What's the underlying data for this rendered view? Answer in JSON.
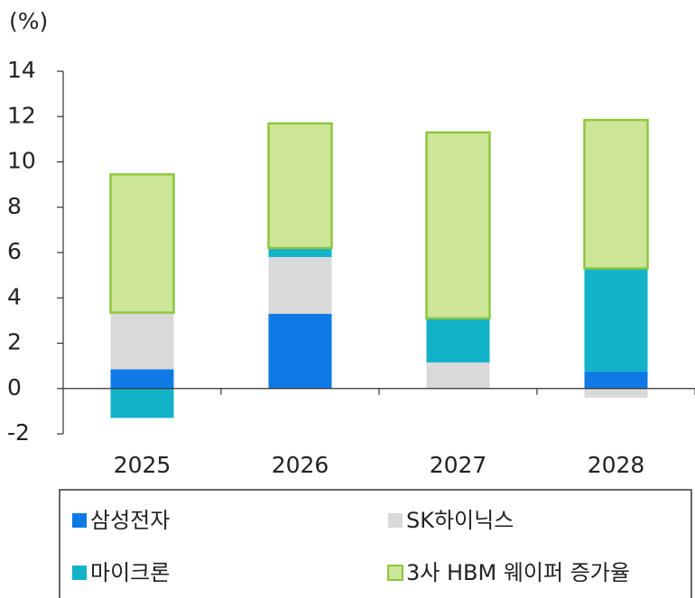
{
  "chart_data": {
    "type": "stacked_bar",
    "y_label": "(%)",
    "categories": [
      "2025",
      "2026",
      "2027",
      "2028"
    ],
    "series": [
      {
        "name": "삼성전자",
        "color": "#0f7ae5",
        "values": [
          0.85,
          3.3,
          0,
          0.75
        ]
      },
      {
        "name": "SK하이닉스",
        "color": "#d9d9d9",
        "values": [
          2.5,
          2.5,
          1.15,
          -0.4
        ]
      },
      {
        "name": "마이크론",
        "color": "#12b2c9",
        "values": [
          -1.3,
          0.4,
          1.95,
          4.55
        ]
      },
      {
        "name": "3사 HBM 웨이퍼 증가율",
        "color": "#cce596",
        "border": "#8dc63f",
        "values": [
          6.1,
          5.5,
          8.2,
          6.55
        ]
      }
    ],
    "ylim": [
      -2,
      14
    ],
    "yticks": [
      {
        "value": -2,
        "label": "-2"
      },
      0,
      2,
      4,
      6,
      8,
      10,
      12,
      14
    ],
    "grid": false
  }
}
